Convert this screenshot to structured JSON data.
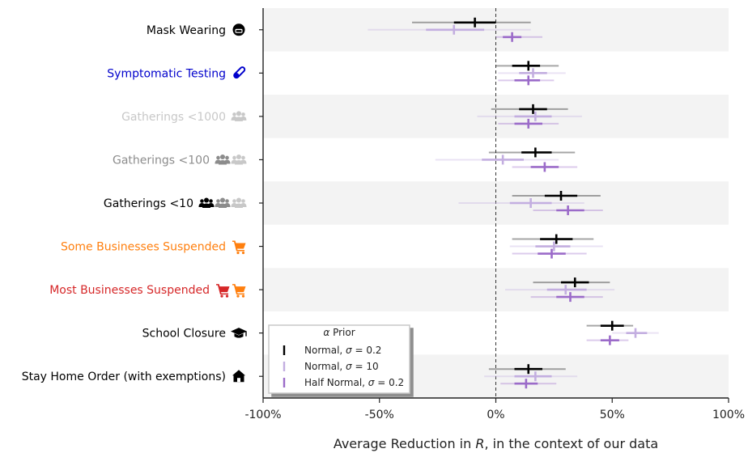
{
  "chart_data": {
    "type": "forest",
    "xlabel_parts": [
      "Average Reduction in ",
      "R",
      ", in the context of our data"
    ],
    "xlim": [
      -100,
      100
    ],
    "xticks": [
      -100,
      -50,
      0,
      50,
      100
    ],
    "xtick_labels": [
      "-100%",
      "-50%",
      "0%",
      "50%",
      "100%"
    ],
    "reference_line": 0,
    "grid": false,
    "legend": {
      "title_parts": [
        "α",
        " Prior"
      ],
      "placement": "lower-left",
      "entries": [
        {
          "name_parts": [
            "Normal, ",
            "σ",
            " = 0.2"
          ],
          "color": "#000000"
        },
        {
          "name_parts": [
            "Normal, ",
            "σ",
            " = 10"
          ],
          "color": "#c3aee0"
        },
        {
          "name_parts": [
            "Half Normal, ",
            "σ",
            " = 0.2"
          ],
          "color": "#9b6bc9"
        }
      ]
    },
    "categories": [
      {
        "label": "Mask Wearing",
        "color": "#000000",
        "icons": [
          {
            "name": "mask-icon",
            "color": "#000000"
          }
        ]
      },
      {
        "label": "Symptomatic Testing",
        "color": "#0000cc",
        "icons": [
          {
            "name": "test-tube-icon",
            "color": "#0000cc"
          }
        ]
      },
      {
        "label": "Gatherings <1000",
        "color": "#c8c8c8",
        "icons": [
          {
            "name": "users-icon",
            "color": "#c8c8c8"
          }
        ]
      },
      {
        "label": "Gatherings <100",
        "color": "#8c8c8c",
        "icons": [
          {
            "name": "users-icon",
            "color": "#8c8c8c"
          },
          {
            "name": "users-icon",
            "color": "#c8c8c8"
          }
        ]
      },
      {
        "label": "Gatherings <10",
        "color": "#000000",
        "icons": [
          {
            "name": "users-icon",
            "color": "#000000"
          },
          {
            "name": "users-icon",
            "color": "#8c8c8c"
          },
          {
            "name": "users-icon",
            "color": "#c8c8c8"
          }
        ]
      },
      {
        "label": "Some Businesses Suspended",
        "color": "#ff7f0e",
        "icons": [
          {
            "name": "cart-icon",
            "color": "#ff7f0e"
          }
        ]
      },
      {
        "label": "Most Businesses Suspended",
        "color": "#d62728",
        "icons": [
          {
            "name": "cart-icon",
            "color": "#d62728"
          },
          {
            "name": "cart-icon",
            "color": "#ff7f0e"
          }
        ]
      },
      {
        "label": "School Closure",
        "color": "#000000",
        "icons": [
          {
            "name": "graduation-cap-icon",
            "color": "#000000"
          }
        ]
      },
      {
        "label": "Stay Home Order (with exemptions)",
        "color": "#000000",
        "icons": [
          {
            "name": "house-icon",
            "color": "#000000"
          }
        ]
      }
    ],
    "series": [
      {
        "name_parts": [
          "Normal, ",
          "σ",
          " = 0.2"
        ],
        "color": "#000000",
        "values": [
          {
            "median": -9,
            "q25": -18,
            "q75": 0,
            "ci_low": -36,
            "ci_high": 15
          },
          {
            "median": 14,
            "q25": 7,
            "q75": 19,
            "ci_low": 0,
            "ci_high": 27
          },
          {
            "median": 16,
            "q25": 10,
            "q75": 22,
            "ci_low": -2,
            "ci_high": 31
          },
          {
            "median": 17,
            "q25": 11,
            "q75": 24,
            "ci_low": -3,
            "ci_high": 34
          },
          {
            "median": 28,
            "q25": 21,
            "q75": 35,
            "ci_low": 7,
            "ci_high": 45
          },
          {
            "median": 26,
            "q25": 19,
            "q75": 33,
            "ci_low": 7,
            "ci_high": 42
          },
          {
            "median": 34,
            "q25": 28,
            "q75": 40,
            "ci_low": 16,
            "ci_high": 49
          },
          {
            "median": 50,
            "q25": 45,
            "q75": 55,
            "ci_low": 39,
            "ci_high": 59
          },
          {
            "median": 14,
            "q25": 8,
            "q75": 20,
            "ci_low": -3,
            "ci_high": 30
          }
        ]
      },
      {
        "name_parts": [
          "Normal, ",
          "σ",
          " = 10"
        ],
        "color": "#c3aee0",
        "values": [
          {
            "median": -18,
            "q25": -30,
            "q75": -5,
            "ci_low": -55,
            "ci_high": 15
          },
          {
            "median": 16,
            "q25": 10,
            "q75": 22,
            "ci_low": 1,
            "ci_high": 30
          },
          {
            "median": 17,
            "q25": 8,
            "q75": 24,
            "ci_low": -8,
            "ci_high": 37
          },
          {
            "median": 3,
            "q25": -6,
            "q75": 12,
            "ci_low": -26,
            "ci_high": 27
          },
          {
            "median": 15,
            "q25": 6,
            "q75": 24,
            "ci_low": -16,
            "ci_high": 38
          },
          {
            "median": 25,
            "q25": 17,
            "q75": 32,
            "ci_low": 6,
            "ci_high": 46
          },
          {
            "median": 30,
            "q25": 22,
            "q75": 39,
            "ci_low": 4,
            "ci_high": 51
          },
          {
            "median": 60,
            "q25": 56,
            "q75": 65,
            "ci_low": 50,
            "ci_high": 70
          },
          {
            "median": 17,
            "q25": 8,
            "q75": 24,
            "ci_low": -5,
            "ci_high": 35
          }
        ]
      },
      {
        "name_parts": [
          "Half Normal, ",
          "σ",
          " = 0.2"
        ],
        "color": "#9b6bc9",
        "values": [
          {
            "median": 7,
            "q25": 3,
            "q75": 11,
            "ci_low": 0,
            "ci_high": 20
          },
          {
            "median": 14,
            "q25": 8,
            "q75": 19,
            "ci_low": 1,
            "ci_high": 25
          },
          {
            "median": 14,
            "q25": 8,
            "q75": 20,
            "ci_low": 1,
            "ci_high": 27
          },
          {
            "median": 21,
            "q25": 15,
            "q75": 27,
            "ci_low": 7,
            "ci_high": 35
          },
          {
            "median": 31,
            "q25": 26,
            "q75": 38,
            "ci_low": 16,
            "ci_high": 46
          },
          {
            "median": 24,
            "q25": 18,
            "q75": 30,
            "ci_low": 7,
            "ci_high": 39
          },
          {
            "median": 32,
            "q25": 26,
            "q75": 38,
            "ci_low": 15,
            "ci_high": 46
          },
          {
            "median": 49,
            "q25": 45,
            "q75": 53,
            "ci_low": 39,
            "ci_high": 57
          },
          {
            "median": 13,
            "q25": 8,
            "q75": 18,
            "ci_low": 2,
            "ci_high": 26
          }
        ]
      }
    ]
  }
}
